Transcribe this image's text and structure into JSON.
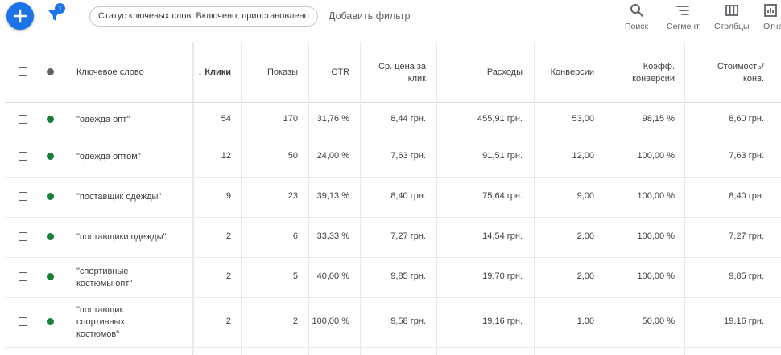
{
  "toolbar": {
    "filter_badge": "1",
    "status_chip": "Статус ключевых слов: Включено, приостановлено",
    "add_filter": "Добавить фильтр",
    "tools": [
      {
        "label": "Поиск",
        "icon": "search-icon"
      },
      {
        "label": "Сегмент",
        "icon": "segment-icon"
      },
      {
        "label": "Столбцы",
        "icon": "columns-icon"
      },
      {
        "label": "Отчеты",
        "icon": "reports-icon"
      }
    ]
  },
  "table": {
    "headers": {
      "keyword": "Ключевое слово",
      "clicks_arrow": "↓",
      "clicks": "Клики",
      "impressions": "Показы",
      "ctr": "CTR",
      "avg_cpc": "Ср. цена за клик",
      "cost": "Расходы",
      "conversions": "Конверсии",
      "conv_rate": "Коэфф. конверсии",
      "cost_per_conv": "Стоимость/ конв."
    },
    "status_colors": {
      "header": "#5f6368",
      "enabled": "#188038"
    },
    "rows": [
      {
        "keyword": "\"одежда опт\"",
        "clicks": "54",
        "impressions": "170",
        "ctr": "31,76 %",
        "avg_cpc": "8,44 грн.",
        "cost": "455,91 грн.",
        "conversions": "53,00",
        "conv_rate": "98,15 %",
        "cost_per_conv": "8,60 грн."
      },
      {
        "keyword": "\"одежда оптом\"",
        "clicks": "12",
        "impressions": "50",
        "ctr": "24,00 %",
        "avg_cpc": "7,63 грн.",
        "cost": "91,51 грн.",
        "conversions": "12,00",
        "conv_rate": "100,00 %",
        "cost_per_conv": "7,63 грн."
      },
      {
        "keyword": "\"поставщик одежды\"",
        "clicks": "9",
        "impressions": "23",
        "ctr": "39,13 %",
        "avg_cpc": "8,40 грн.",
        "cost": "75,64 грн.",
        "conversions": "9,00",
        "conv_rate": "100,00 %",
        "cost_per_conv": "8,40 грн."
      },
      {
        "keyword": "\"поставщики одежды\"",
        "clicks": "2",
        "impressions": "6",
        "ctr": "33,33 %",
        "avg_cpc": "7,27 грн.",
        "cost": "14,54 грн.",
        "conversions": "2,00",
        "conv_rate": "100,00 %",
        "cost_per_conv": "7,27 грн."
      },
      {
        "keyword": "\"спортивные костюмы опт\"",
        "clicks": "2",
        "impressions": "5",
        "ctr": "40,00 %",
        "avg_cpc": "9,85 грн.",
        "cost": "19,70 грн.",
        "conversions": "2,00",
        "conv_rate": "100,00 %",
        "cost_per_conv": "9,85 грн."
      },
      {
        "keyword": "\"поставщик спортивных костюмов\"",
        "clicks": "2",
        "impressions": "2",
        "ctr": "100,00 %",
        "avg_cpc": "9,58 грн.",
        "cost": "19,16 грн.",
        "conversions": "1,00",
        "conv_rate": "50,00 %",
        "cost_per_conv": "19,16 грн."
      }
    ]
  }
}
